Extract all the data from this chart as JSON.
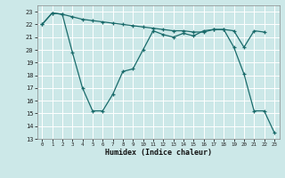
{
  "title": "",
  "xlabel": "Humidex (Indice chaleur)",
  "bg_color": "#cce8e8",
  "grid_color": "#ffffff",
  "line_color": "#1a6b6b",
  "xlim": [
    -0.5,
    23.5
  ],
  "ylim": [
    13,
    23.5
  ],
  "yticks": [
    13,
    14,
    15,
    16,
    17,
    18,
    19,
    20,
    21,
    22,
    23
  ],
  "xticks": [
    0,
    1,
    2,
    3,
    4,
    5,
    6,
    7,
    8,
    9,
    10,
    11,
    12,
    13,
    14,
    15,
    16,
    17,
    18,
    19,
    20,
    21,
    22,
    23
  ],
  "line1_x": [
    0,
    1,
    2,
    3,
    4,
    5,
    6,
    7,
    8,
    9,
    10,
    11,
    12,
    13,
    14,
    15,
    16,
    17,
    18,
    19,
    20,
    21,
    22
  ],
  "line1_y": [
    22.0,
    22.9,
    22.8,
    22.6,
    22.4,
    22.3,
    22.2,
    22.1,
    22.0,
    21.9,
    21.8,
    21.7,
    21.6,
    21.5,
    21.5,
    21.4,
    21.4,
    21.6,
    21.6,
    21.5,
    20.2,
    21.5,
    21.4
  ],
  "line2_x": [
    0,
    1,
    2,
    3,
    4,
    5,
    6,
    7,
    8,
    9,
    10,
    11,
    12,
    13,
    14,
    15,
    16,
    17,
    18,
    19,
    20,
    21,
    22,
    23
  ],
  "line2_y": [
    22.0,
    22.9,
    22.8,
    19.8,
    17.0,
    15.2,
    15.2,
    16.5,
    18.3,
    18.5,
    20.0,
    21.5,
    21.2,
    21.0,
    21.3,
    21.1,
    21.5,
    21.6,
    21.6,
    20.2,
    18.1,
    15.2,
    15.2,
    13.5
  ]
}
